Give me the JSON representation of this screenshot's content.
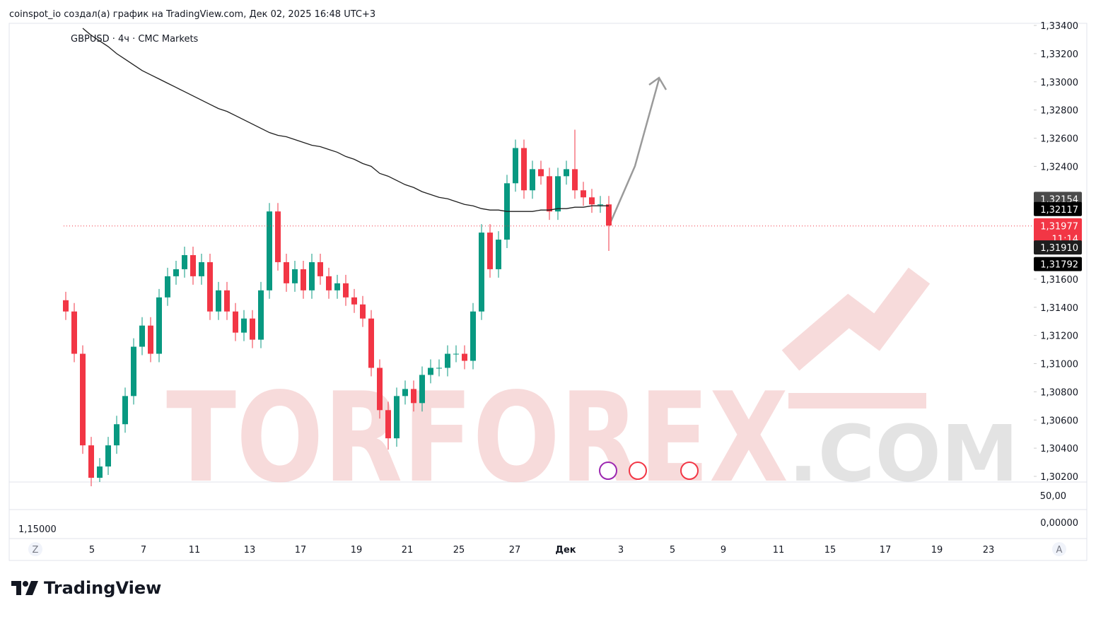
{
  "header": "coinspot_io создал(а) график на TradingView.com, Дек 02, 2025 16:48 UTC+3",
  "logo": "TradingView",
  "watermark": {
    "main": "TORFOREX",
    "suffix": ".COM"
  },
  "chart_data": {
    "type": "candlestick",
    "symbol": "GBPUSD · 4ч · CMC Markets",
    "ylim": [
      1.302,
      1.334
    ],
    "yticks": [
      {
        "value": 1.334,
        "label": "1,33400"
      },
      {
        "value": 1.332,
        "label": "1,33200"
      },
      {
        "value": 1.33,
        "label": "1,33000"
      },
      {
        "value": 1.328,
        "label": "1,32800"
      },
      {
        "value": 1.326,
        "label": "1,32600"
      },
      {
        "value": 1.324,
        "label": "1,32400"
      },
      {
        "value": 1.316,
        "label": "1,31600"
      },
      {
        "value": 1.314,
        "label": "1,31400"
      },
      {
        "value": 1.312,
        "label": "1,31200"
      },
      {
        "value": 1.31,
        "label": "1,31000"
      },
      {
        "value": 1.308,
        "label": "1,30800"
      },
      {
        "value": 1.306,
        "label": "1,30600"
      },
      {
        "value": 1.304,
        "label": "1,30400"
      },
      {
        "value": 1.302,
        "label": "1,30200"
      }
    ],
    "x_labels": [
      "Z",
      "5",
      "7",
      "11",
      "13",
      "17",
      "19",
      "21",
      "25",
      "27",
      "Дек",
      "3",
      "5",
      "9",
      "11",
      "15",
      "17",
      "19",
      "23",
      "A"
    ],
    "open": [
      1.3145,
      1.3137,
      1.3107,
      1.3042,
      1.3019,
      1.3027,
      1.3042,
      1.3057,
      1.3077,
      1.3112,
      1.3127,
      1.3107,
      1.3147,
      1.3162,
      1.3167,
      1.3177,
      1.3162,
      1.3172,
      1.3137,
      1.3152,
      1.3137,
      1.3122,
      1.3132,
      1.3117,
      1.3152,
      1.3208,
      1.3172,
      1.3157,
      1.3167,
      1.3152,
      1.3172,
      1.3162,
      1.3152,
      1.3157,
      1.3147,
      1.3142,
      1.3132,
      1.3097,
      1.3067,
      1.3047,
      1.3077,
      1.3082,
      1.3072,
      1.3092,
      1.3097,
      1.3097,
      1.3107,
      1.3107,
      1.3102,
      1.3137,
      1.3193,
      1.3167,
      1.3188,
      1.3228,
      1.3253,
      1.3223,
      1.3238,
      1.3233,
      1.3208,
      1.3233,
      1.3238,
      1.3223,
      1.3218,
      1.3213,
      1.3213
    ],
    "high": [
      1.3151,
      1.3143,
      1.3113,
      1.3048,
      1.3033,
      1.3048,
      1.3063,
      1.3083,
      1.3118,
      1.3133,
      1.3133,
      1.3153,
      1.3168,
      1.3173,
      1.3183,
      1.3183,
      1.3178,
      1.3178,
      1.3158,
      1.3158,
      1.3143,
      1.3138,
      1.3138,
      1.3158,
      1.3214,
      1.3214,
      1.3178,
      1.3173,
      1.3173,
      1.3178,
      1.3178,
      1.3168,
      1.3163,
      1.3163,
      1.3153,
      1.3148,
      1.3138,
      1.3103,
      1.3073,
      1.3083,
      1.3088,
      1.3088,
      1.3098,
      1.3103,
      1.3103,
      1.3113,
      1.3113,
      1.3113,
      1.3143,
      1.3199,
      1.3199,
      1.3194,
      1.3234,
      1.3259,
      1.3259,
      1.3244,
      1.3244,
      1.3239,
      1.3239,
      1.3244,
      1.3266,
      1.3229,
      1.3224,
      1.3219,
      1.3219
    ],
    "low": [
      1.3131,
      1.3101,
      1.3036,
      1.3013,
      1.3016,
      1.3021,
      1.3036,
      1.3051,
      1.3071,
      1.3106,
      1.3101,
      1.3101,
      1.3141,
      1.3156,
      1.3161,
      1.3156,
      1.3156,
      1.3131,
      1.3131,
      1.3131,
      1.3116,
      1.3116,
      1.3111,
      1.3111,
      1.3146,
      1.3166,
      1.3151,
      1.3151,
      1.3146,
      1.3146,
      1.3156,
      1.3146,
      1.3146,
      1.3141,
      1.3136,
      1.3126,
      1.3091,
      1.3061,
      1.3039,
      1.3041,
      1.3071,
      1.3066,
      1.3066,
      1.3086,
      1.3091,
      1.3091,
      1.3101,
      1.3096,
      1.3096,
      1.3131,
      1.3161,
      1.3161,
      1.3182,
      1.3222,
      1.3217,
      1.3217,
      1.3227,
      1.3202,
      1.3202,
      1.3227,
      1.3217,
      1.3212,
      1.3207,
      1.3207,
      1.318
    ],
    "close": [
      1.3137,
      1.3107,
      1.3042,
      1.3019,
      1.3027,
      1.3042,
      1.3057,
      1.3077,
      1.3112,
      1.3127,
      1.3107,
      1.3147,
      1.3162,
      1.3167,
      1.3177,
      1.3162,
      1.3172,
      1.3137,
      1.3152,
      1.3137,
      1.3122,
      1.3132,
      1.3117,
      1.3152,
      1.3208,
      1.3172,
      1.3157,
      1.3167,
      1.3152,
      1.3172,
      1.3162,
      1.3152,
      1.3157,
      1.3147,
      1.3142,
      1.3132,
      1.3097,
      1.3067,
      1.3047,
      1.3077,
      1.3082,
      1.3072,
      1.3092,
      1.3097,
      1.3097,
      1.3107,
      1.3107,
      1.3102,
      1.3137,
      1.3193,
      1.3167,
      1.3188,
      1.3228,
      1.3253,
      1.3223,
      1.3238,
      1.3233,
      1.3208,
      1.3233,
      1.3238,
      1.3223,
      1.3218,
      1.3213,
      1.3213,
      1.3198
    ],
    "up_color": "#089981",
    "down_color": "#f23645",
    "line_color": "#1e1e1e",
    "ma": [
      null,
      null,
      1.3338,
      1.3333,
      1.3329,
      1.3325,
      1.332,
      1.3316,
      1.3312,
      1.3308,
      1.3305,
      1.3302,
      1.3299,
      1.3296,
      1.3293,
      1.329,
      1.3287,
      1.3284,
      1.3281,
      1.3279,
      1.3276,
      1.3273,
      1.327,
      1.3267,
      1.3264,
      1.3262,
      1.3261,
      1.3259,
      1.3257,
      1.3255,
      1.3254,
      1.3252,
      1.325,
      1.3247,
      1.3245,
      1.3242,
      1.324,
      1.3235,
      1.3233,
      1.323,
      1.3227,
      1.3225,
      1.3222,
      1.322,
      1.3218,
      1.3217,
      1.3215,
      1.3213,
      1.3212,
      1.321,
      1.3209,
      1.3209,
      1.3208,
      1.3208,
      1.3208,
      1.3208,
      1.3209,
      1.3209,
      1.321,
      1.321,
      1.3211,
      1.3211,
      1.3212,
      1.3212,
      1.3212
    ],
    "price_labels": [
      {
        "value": 1.32154,
        "label": "1,32154",
        "color": "#4a4a4a"
      },
      {
        "value": 1.32117,
        "label": "1,32117",
        "color": "#000000"
      },
      {
        "value": 1.31977,
        "label": "1,31977",
        "color": "#f23645"
      },
      {
        "value": 1.3191,
        "label": "1,31910",
        "color": "#1e1e1e"
      },
      {
        "value": 1.31792,
        "label": "1,31792",
        "color": "#000000"
      }
    ],
    "countdown": "11:14",
    "indicator_labels": [
      "50,00",
      "0,00000"
    ],
    "indicator_left": "1,15000"
  }
}
